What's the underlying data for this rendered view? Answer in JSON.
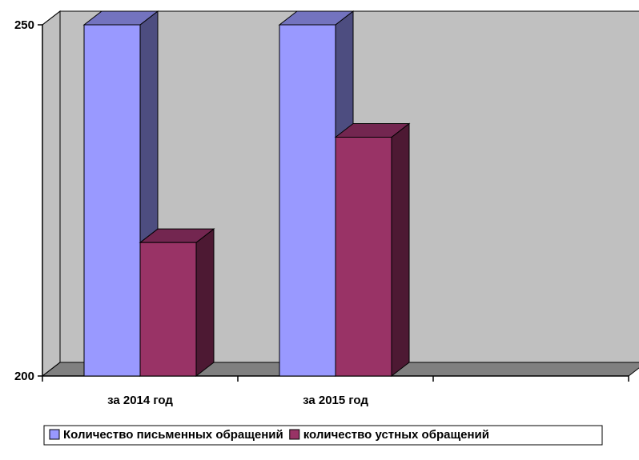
{
  "chart_data": {
    "type": "bar",
    "style": "3d-clustered-column",
    "categories": [
      "за 2014 год",
      "за 2015 год",
      ""
    ],
    "series": [
      {
        "name": "Количество письменных обращений",
        "values": [
          250,
          250,
          null
        ],
        "color": "#9999ff",
        "side_color": "#4d4d80",
        "top_color": "#7373bf"
      },
      {
        "name": "количество устных обращений",
        "values": [
          219,
          234,
          null
        ],
        "color": "#993366",
        "side_color": "#4d1933",
        "top_color": "#732650"
      }
    ],
    "ylim": [
      200,
      250
    ],
    "yticks": [
      200,
      250
    ],
    "title": "",
    "xlabel": "",
    "ylabel": "",
    "grid": false,
    "legend": "bottom",
    "wall_color": "#c0c0c0",
    "floor_color": "#808080"
  }
}
